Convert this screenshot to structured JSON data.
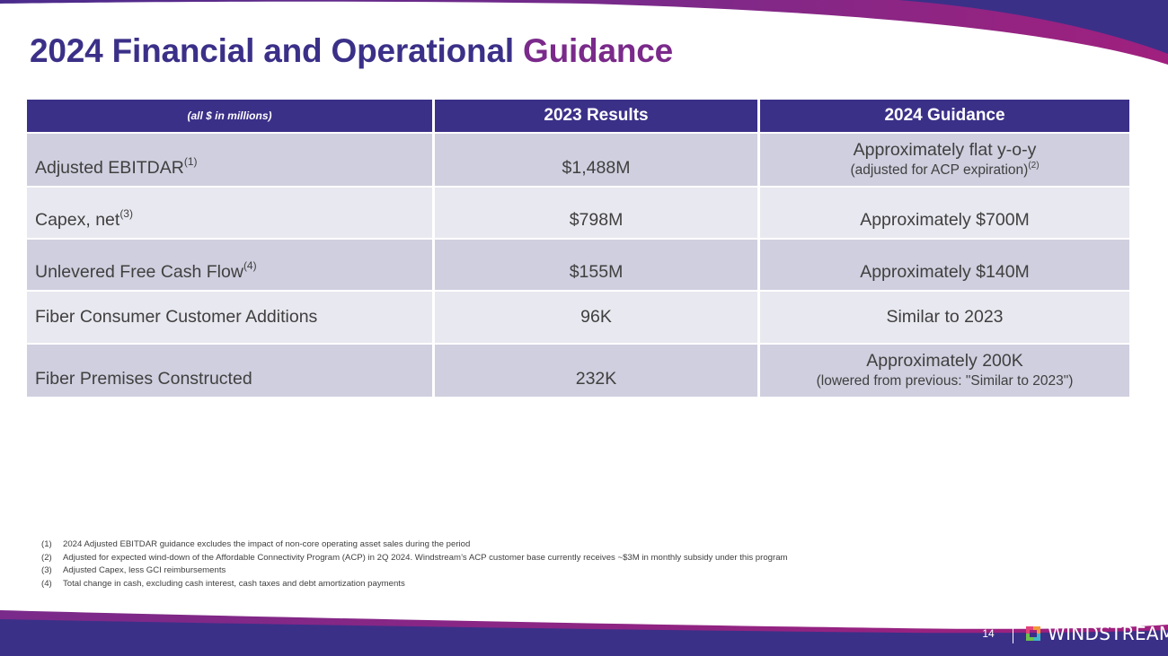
{
  "slide": {
    "title_main": "2024 Financial and Operational ",
    "title_accent": "Guidance",
    "page_number": "14"
  },
  "table": {
    "header": {
      "units": "(all $ in millions)",
      "col2": "2023 Results",
      "col3": "2024 Guidance"
    },
    "rows": [
      {
        "label": "Adjusted EBITDAR",
        "label_note": "(1)",
        "result": "$1,488M",
        "guidance": "Approximately flat y-o-y",
        "guidance_sub": "(adjusted for ACP expiration)",
        "guidance_note": "(2)"
      },
      {
        "label": "Capex, net",
        "label_note": "(3)",
        "result": "$798M",
        "guidance": "Approximately $700M"
      },
      {
        "label": "Unlevered Free Cash Flow",
        "label_note": "(4)",
        "result": "$155M",
        "guidance": "Approximately $140M"
      },
      {
        "label": "Fiber Consumer Customer Additions",
        "result": "96K",
        "guidance": "Similar to 2023"
      },
      {
        "label": "Fiber Premises Constructed",
        "result": "232K",
        "guidance": "Approximately 200K",
        "guidance_sub": "(lowered from previous: \"Similar to 2023\")"
      }
    ]
  },
  "footnotes": [
    {
      "num": "(1)",
      "text": "2024 Adjusted EBITDAR guidance excludes the impact of non-core operating asset sales during the period"
    },
    {
      "num": "(2)",
      "text": "Adjusted for expected wind-down of the Affordable Connectivity Program (ACP) in 2Q 2024.  Windstream’s ACP customer base currently receives ~$3M in monthly subsidy under this program"
    },
    {
      "num": "(3)",
      "text": "Adjusted Capex, less GCI reimbursements"
    },
    {
      "num": "(4)",
      "text": "Total change in cash, excluding cash interest, cash taxes and debt amortization payments"
    }
  ],
  "branding": {
    "logo_text": "WINDSTREAM",
    "logo_icon": "windstream-logo-icon"
  },
  "colors": {
    "primary": "#3b3088",
    "accent": "#7a2a8a",
    "row_dark": "#cfcfdf",
    "row_light": "#e8e8f0"
  }
}
